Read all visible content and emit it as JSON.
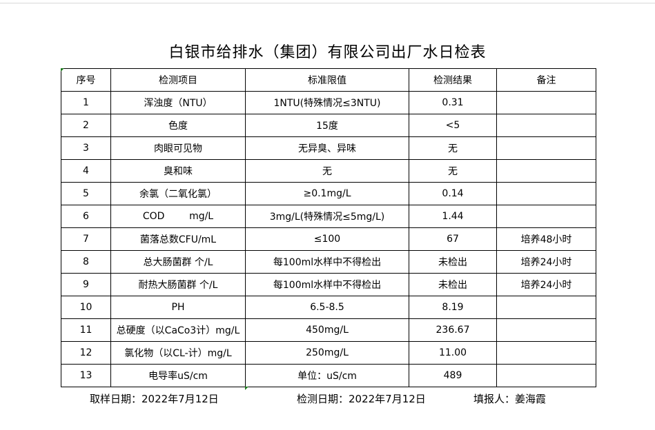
{
  "title": "白银市给排水（集团）有限公司出厂水日检表",
  "headers": [
    "序号",
    "检测项目",
    "标准限值",
    "检测结果",
    "备注"
  ],
  "rows": [
    [
      "1",
      "浑浊度（NTU）",
      "1NTU(特殊情况≤3NTU)",
      "0.31",
      ""
    ],
    [
      "2",
      "色度",
      "15度",
      "<5",
      ""
    ],
    [
      "3",
      "肉眼可见物",
      "无异臭、异味",
      "无",
      ""
    ],
    [
      "4",
      "臭和味",
      "无",
      "无",
      ""
    ],
    [
      "5",
      "余氯（二氧化氯）",
      "≥0.1mg/L",
      "0.14",
      ""
    ],
    [
      "6",
      "COD        mg/L",
      "3mg/L(特殊情况≤5mg/L)",
      "1.44",
      ""
    ],
    [
      "7",
      "菌落总数CFU/mL",
      "≤100",
      "67",
      "培养48小时"
    ],
    [
      "8",
      "总大肠菌群 个/L",
      "每100ml水样中不得检出",
      "未检出",
      "培养24小时"
    ],
    [
      "9",
      "耐热大肠菌群 个/L",
      "每100ml水样中不得检出",
      "未检出",
      "培养24小时"
    ],
    [
      "10",
      "PH",
      "6.5-8.5",
      "8.19",
      ""
    ],
    [
      "11",
      "总硬度（以CaCo3计）mg/L",
      "450mg/L",
      "236.67",
      ""
    ],
    [
      "12",
      "氯化物（以CL-计）mg/L",
      "250mg/L",
      "11.00",
      ""
    ],
    [
      "13",
      "电导率uS/cm",
      "单位：uS/cm",
      "489",
      ""
    ]
  ],
  "footer": {
    "sample_date": "取样日期：2022年7月12日",
    "test_date": "检测日期：2022年7月12日",
    "reporter": "填报人：姜海霞"
  }
}
